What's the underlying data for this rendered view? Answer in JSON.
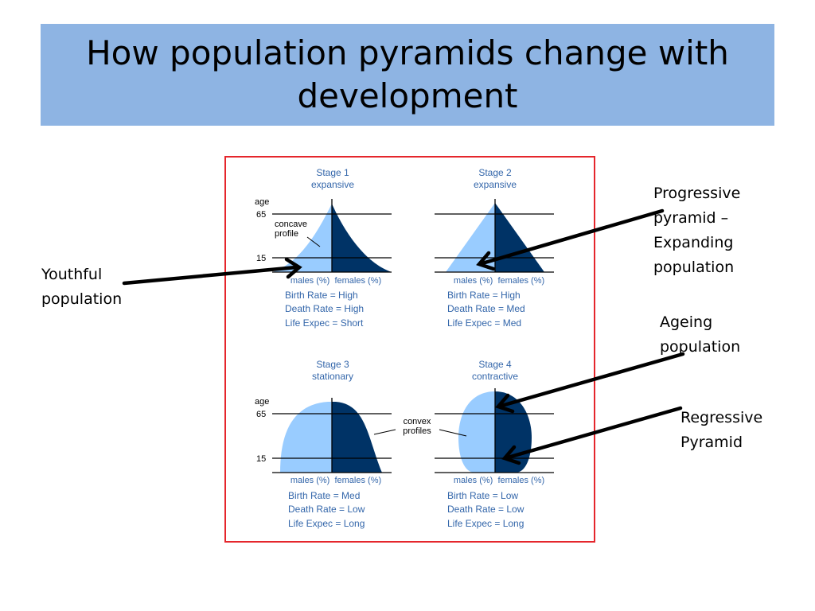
{
  "slide": {
    "title": "How population pyramids change with development"
  },
  "colors": {
    "title_bg": "#8eb4e3",
    "frame_border": "#e5262c",
    "male_fill": "#99ccff",
    "female_fill": "#003366",
    "diagram_text": "#3366aa",
    "arrow": "#000000"
  },
  "figure": {
    "age_label": "age",
    "tick_upper": "65",
    "tick_lower": "15",
    "axis_caption": "males (%)  females (%)",
    "concave_label_line1": "concave",
    "concave_label_line2": "profile",
    "convex_label_line1": "convex",
    "convex_label_line2": "profiles",
    "stages": [
      {
        "name": "Stage 1",
        "type": "expansive",
        "birth": "Birth Rate = High",
        "death": "Death Rate = High",
        "life": "Life Expec = Short"
      },
      {
        "name": "Stage 2",
        "type": "expansive",
        "birth": "Birth Rate = High",
        "death": "Death Rate = Med",
        "life": "Life Expec = Med"
      },
      {
        "name": "Stage 3",
        "type": "stationary",
        "birth": "Birth Rate = Med",
        "death": "Death Rate = Low",
        "life": "Life Expec = Long"
      },
      {
        "name": "Stage 4",
        "type": "contractive",
        "birth": "Birth Rate = Low",
        "death": "Death Rate = Low",
        "life": "Life Expec = Long"
      }
    ]
  },
  "annotations": {
    "youthful": [
      "Youthful",
      "population"
    ],
    "progressive": [
      "Progressive",
      "pyramid –",
      "Expanding",
      "population"
    ],
    "ageing": [
      "Ageing",
      "population"
    ],
    "regressive": [
      "Regressive",
      "Pyramid"
    ]
  }
}
